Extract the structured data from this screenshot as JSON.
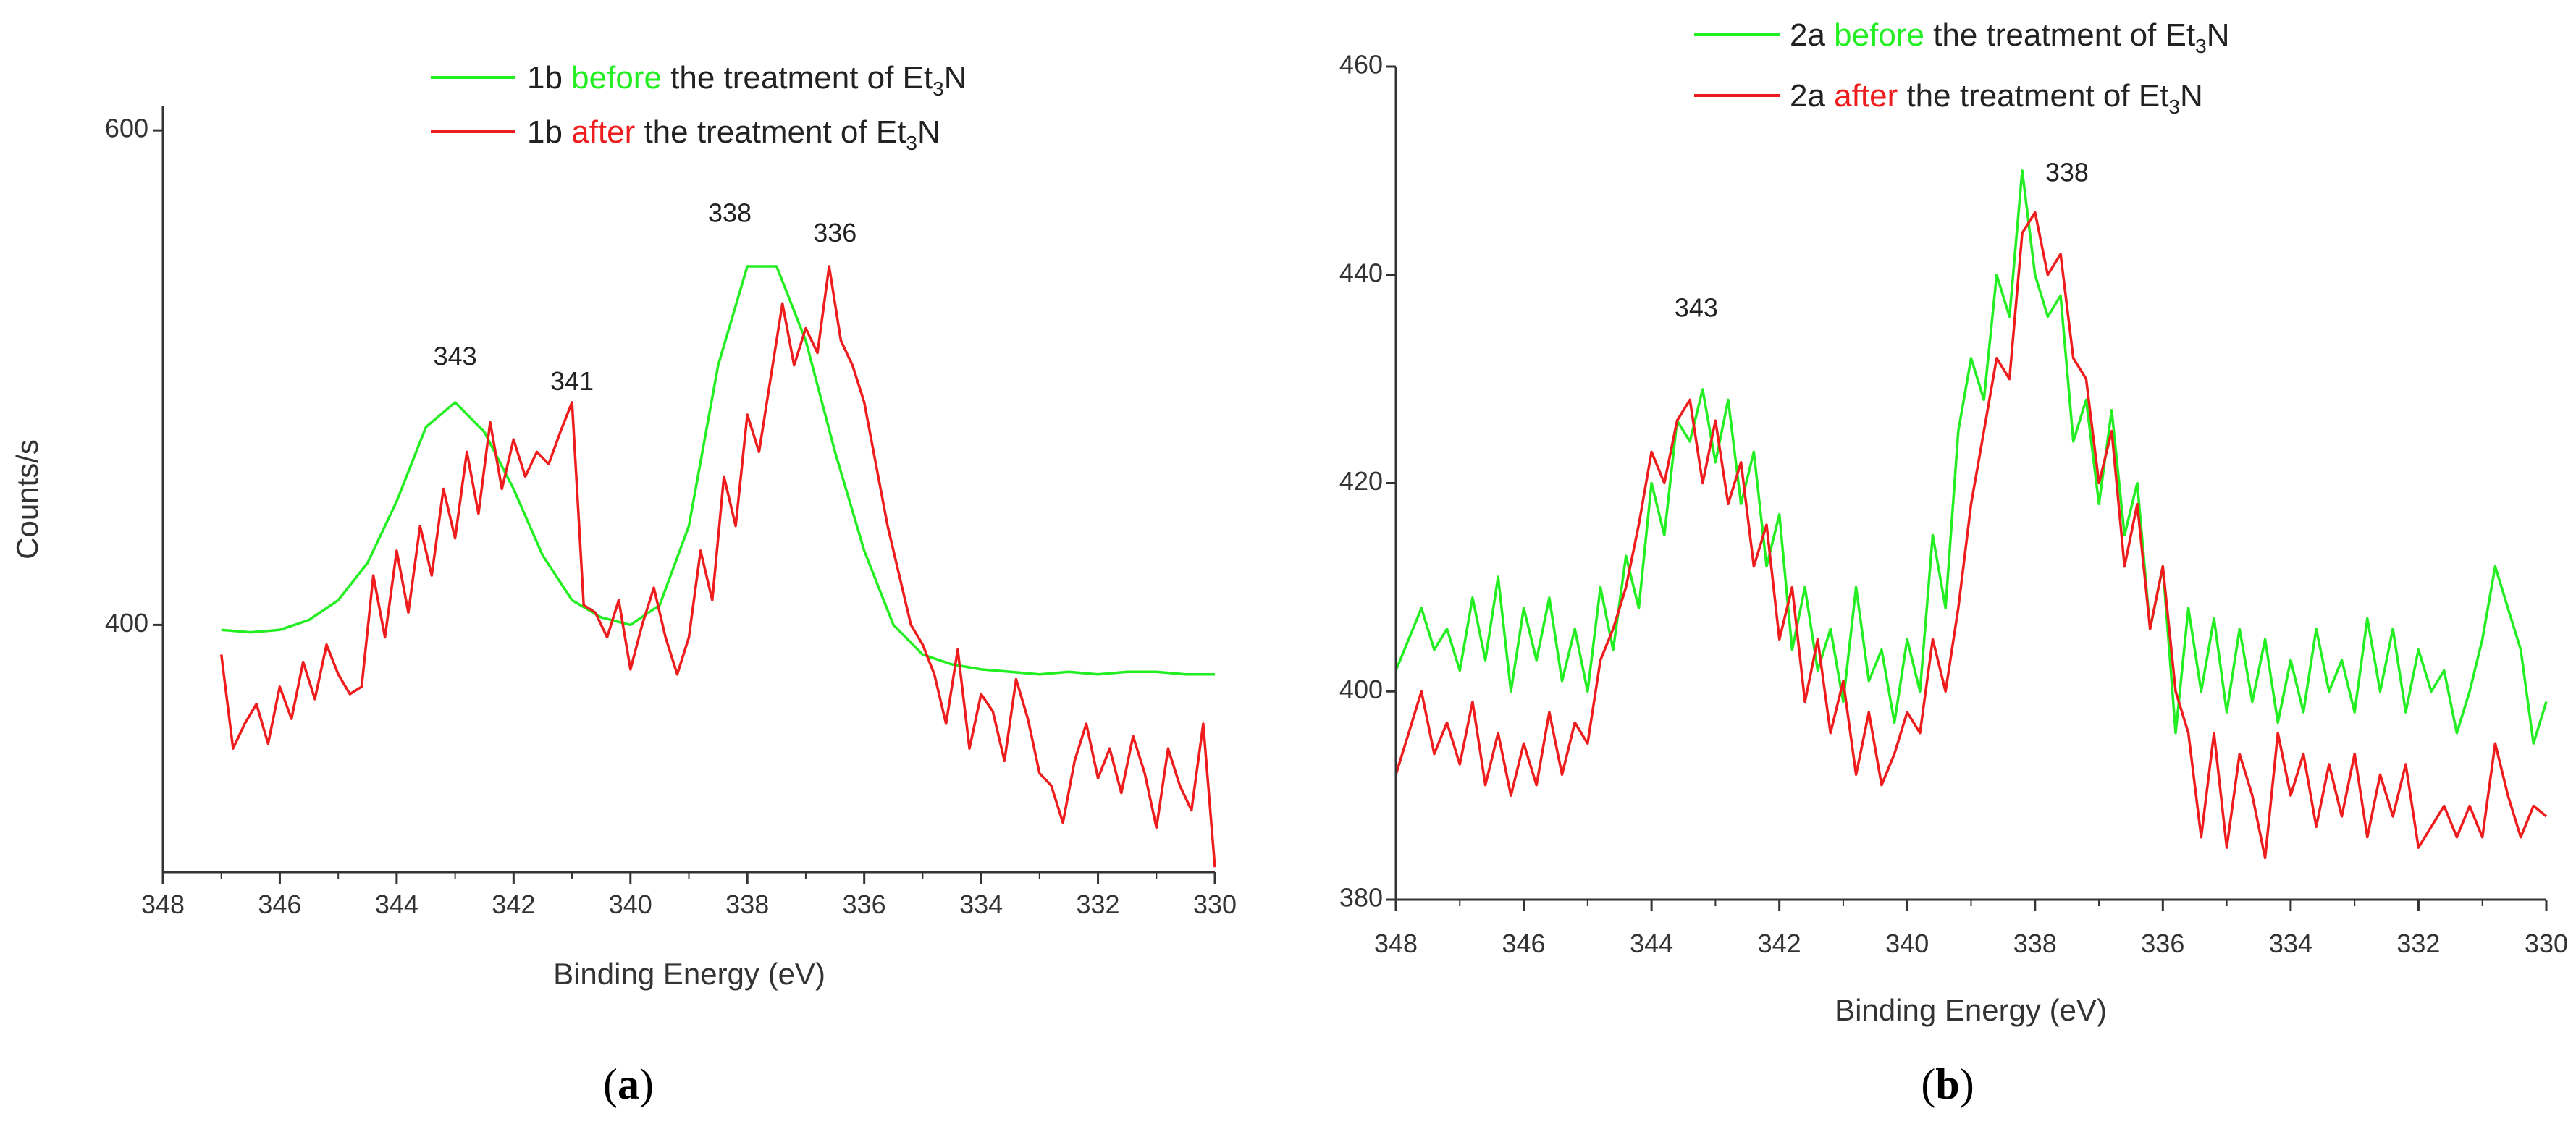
{
  "colors": {
    "before": "#22ee22",
    "after": "#ee1c1c",
    "axis": "#333333"
  },
  "chart_data": [
    {
      "type": "line",
      "panel_label": "a",
      "xlabel": "Binding Energy (eV)",
      "ylabel": "Counts/s",
      "xlim": [
        348,
        330
      ],
      "ylim": [
        300,
        610
      ],
      "xticks": [
        348,
        346,
        344,
        342,
        340,
        338,
        336,
        334,
        332,
        330
      ],
      "xtick_labels": [
        "348",
        "346",
        "344",
        "342",
        "340",
        "338",
        "336",
        "334",
        "332",
        "330"
      ],
      "yticks": [
        400,
        600
      ],
      "ytick_labels": [
        "400",
        "600"
      ],
      "legend": [
        {
          "prefix": "1b ",
          "keyword": "before",
          "suffix": " the treatment of Et",
          "sub": "3",
          "tail": "N",
          "color_key": "before"
        },
        {
          "prefix": "1b ",
          "keyword": "after",
          "suffix": " the treatment of Et",
          "sub": "3",
          "tail": "N",
          "color_key": "after"
        }
      ],
      "annotations": [
        {
          "text": "343",
          "x": 343.0,
          "y": 505
        },
        {
          "text": "341",
          "x": 341.0,
          "y": 495
        },
        {
          "text": "338",
          "x": 338.3,
          "y": 563
        },
        {
          "text": "336",
          "x": 336.5,
          "y": 555
        }
      ],
      "series": [
        {
          "name": "1b before the treatment of Et3N",
          "color_key": "before",
          "x": [
            347.0,
            346.5,
            346.0,
            345.5,
            345.0,
            344.5,
            344.0,
            343.5,
            343.0,
            342.5,
            342.0,
            341.5,
            341.0,
            340.5,
            340.0,
            339.5,
            339.0,
            338.5,
            338.0,
            337.5,
            337.0,
            336.5,
            336.0,
            335.5,
            335.0,
            334.5,
            334.0,
            333.5,
            333.0,
            332.5,
            332.0,
            331.5,
            331.0,
            330.5,
            330.0
          ],
          "y": [
            398,
            397,
            398,
            402,
            410,
            425,
            450,
            480,
            490,
            478,
            455,
            428,
            410,
            403,
            400,
            408,
            440,
            505,
            545,
            545,
            515,
            470,
            430,
            400,
            388,
            384,
            382,
            381,
            380,
            381,
            380,
            381,
            381,
            380,
            380
          ]
        },
        {
          "name": "1b after the treatment of Et3N",
          "color_key": "after",
          "x": [
            347.0,
            346.8,
            346.6,
            346.4,
            346.2,
            346.0,
            345.8,
            345.6,
            345.4,
            345.2,
            345.0,
            344.8,
            344.6,
            344.4,
            344.2,
            344.0,
            343.8,
            343.6,
            343.4,
            343.2,
            343.0,
            342.8,
            342.6,
            342.4,
            342.2,
            342.0,
            341.8,
            341.6,
            341.4,
            341.2,
            341.0,
            340.8,
            340.6,
            340.4,
            340.2,
            340.0,
            339.8,
            339.6,
            339.4,
            339.2,
            339.0,
            338.8,
            338.6,
            338.4,
            338.2,
            338.0,
            337.8,
            337.6,
            337.4,
            337.2,
            337.0,
            336.8,
            336.6,
            336.4,
            336.2,
            336.0,
            335.8,
            335.6,
            335.4,
            335.2,
            335.0,
            334.8,
            334.6,
            334.4,
            334.2,
            334.0,
            333.8,
            333.6,
            333.4,
            333.2,
            333.0,
            332.8,
            332.6,
            332.4,
            332.2,
            332.0,
            331.8,
            331.6,
            331.4,
            331.2,
            331.0,
            330.8,
            330.6,
            330.4,
            330.2,
            330.0
          ],
          "y": [
            388,
            350,
            360,
            368,
            352,
            375,
            362,
            385,
            370,
            392,
            380,
            372,
            375,
            420,
            395,
            430,
            405,
            440,
            420,
            455,
            435,
            470,
            445,
            482,
            455,
            475,
            460,
            470,
            465,
            478,
            490,
            408,
            405,
            395,
            410,
            382,
            400,
            415,
            395,
            380,
            395,
            430,
            410,
            460,
            440,
            485,
            470,
            500,
            530,
            505,
            520,
            510,
            545,
            515,
            505,
            490,
            465,
            440,
            420,
            400,
            392,
            380,
            360,
            390,
            350,
            372,
            365,
            345,
            378,
            362,
            340,
            335,
            320,
            345,
            360,
            338,
            350,
            332,
            355,
            340,
            318,
            350,
            335,
            325,
            360,
            302
          ]
        }
      ]
    },
    {
      "type": "line",
      "panel_label": "b",
      "xlabel": "Binding Energy (eV)",
      "ylabel": "",
      "xlim": [
        348,
        330
      ],
      "ylim": [
        380,
        460
      ],
      "xticks": [
        348,
        346,
        344,
        342,
        340,
        338,
        336,
        334,
        332,
        330
      ],
      "xtick_labels": [
        "348",
        "346",
        "344",
        "342",
        "340",
        "338",
        "336",
        "334",
        "332",
        "330"
      ],
      "yticks": [
        380,
        400,
        420,
        440,
        460
      ],
      "ytick_labels": [
        "380",
        "400",
        "420",
        "440",
        "460"
      ],
      "legend": [
        {
          "prefix": "2a ",
          "keyword": "before",
          "suffix": " the treatment of Et",
          "sub": "3",
          "tail": "N",
          "color_key": "before"
        },
        {
          "prefix": "2a ",
          "keyword": "after",
          "suffix": " the treatment of Et",
          "sub": "3",
          "tail": "N",
          "color_key": "after"
        }
      ],
      "annotations": [
        {
          "text": "343",
          "x": 343.3,
          "y": 436
        },
        {
          "text": "338",
          "x": 337.5,
          "y": 449
        }
      ],
      "series": [
        {
          "name": "2a before the treatment of Et3N",
          "color_key": "before",
          "x": [
            348.0,
            347.8,
            347.6,
            347.4,
            347.2,
            347.0,
            346.8,
            346.6,
            346.4,
            346.2,
            346.0,
            345.8,
            345.6,
            345.4,
            345.2,
            345.0,
            344.8,
            344.6,
            344.4,
            344.2,
            344.0,
            343.8,
            343.6,
            343.4,
            343.2,
            343.0,
            342.8,
            342.6,
            342.4,
            342.2,
            342.0,
            341.8,
            341.6,
            341.4,
            341.2,
            341.0,
            340.8,
            340.6,
            340.4,
            340.2,
            340.0,
            339.8,
            339.6,
            339.4,
            339.2,
            339.0,
            338.8,
            338.6,
            338.4,
            338.2,
            338.0,
            337.8,
            337.6,
            337.4,
            337.2,
            337.0,
            336.8,
            336.6,
            336.4,
            336.2,
            336.0,
            335.8,
            335.6,
            335.4,
            335.2,
            335.0,
            334.8,
            334.6,
            334.4,
            334.2,
            334.0,
            333.8,
            333.6,
            333.4,
            333.2,
            333.0,
            332.8,
            332.6,
            332.4,
            332.2,
            332.0,
            331.8,
            331.6,
            331.4,
            331.2,
            331.0,
            330.8,
            330.6,
            330.4,
            330.2,
            330.0
          ],
          "y": [
            402,
            405,
            408,
            404,
            406,
            402,
            409,
            403,
            411,
            400,
            408,
            403,
            409,
            401,
            406,
            400,
            410,
            404,
            413,
            408,
            420,
            415,
            426,
            424,
            429,
            422,
            428,
            418,
            423,
            412,
            417,
            404,
            410,
            402,
            406,
            399,
            410,
            401,
            404,
            397,
            405,
            400,
            415,
            408,
            425,
            432,
            428,
            440,
            436,
            450,
            440,
            436,
            438,
            424,
            428,
            418,
            427,
            415,
            420,
            406,
            412,
            396,
            408,
            400,
            407,
            398,
            406,
            399,
            405,
            397,
            403,
            398,
            406,
            400,
            403,
            398,
            407,
            400,
            406,
            398,
            404,
            400,
            402,
            396,
            400,
            405,
            412,
            408,
            404,
            395,
            399
          ]
        },
        {
          "name": "2a after the treatment of Et3N",
          "color_key": "after",
          "x": [
            348.0,
            347.8,
            347.6,
            347.4,
            347.2,
            347.0,
            346.8,
            346.6,
            346.4,
            346.2,
            346.0,
            345.8,
            345.6,
            345.4,
            345.2,
            345.0,
            344.8,
            344.6,
            344.4,
            344.2,
            344.0,
            343.8,
            343.6,
            343.4,
            343.2,
            343.0,
            342.8,
            342.6,
            342.4,
            342.2,
            342.0,
            341.8,
            341.6,
            341.4,
            341.2,
            341.0,
            340.8,
            340.6,
            340.4,
            340.2,
            340.0,
            339.8,
            339.6,
            339.4,
            339.2,
            339.0,
            338.8,
            338.6,
            338.4,
            338.2,
            338.0,
            337.8,
            337.6,
            337.4,
            337.2,
            337.0,
            336.8,
            336.6,
            336.4,
            336.2,
            336.0,
            335.8,
            335.6,
            335.4,
            335.2,
            335.0,
            334.8,
            334.6,
            334.4,
            334.2,
            334.0,
            333.8,
            333.6,
            333.4,
            333.2,
            333.0,
            332.8,
            332.6,
            332.4,
            332.2,
            332.0,
            331.8,
            331.6,
            331.4,
            331.2,
            331.0,
            330.8,
            330.6,
            330.4,
            330.2,
            330.0
          ],
          "y": [
            392,
            396,
            400,
            394,
            397,
            393,
            399,
            391,
            396,
            390,
            395,
            391,
            398,
            392,
            397,
            395,
            403,
            406,
            410,
            416,
            423,
            420,
            426,
            428,
            420,
            426,
            418,
            422,
            412,
            416,
            405,
            410,
            399,
            405,
            396,
            401,
            392,
            398,
            391,
            394,
            398,
            396,
            405,
            400,
            408,
            418,
            425,
            432,
            430,
            444,
            446,
            440,
            442,
            432,
            430,
            420,
            425,
            412,
            418,
            406,
            412,
            400,
            396,
            386,
            396,
            385,
            394,
            390,
            384,
            396,
            390,
            394,
            387,
            393,
            388,
            394,
            386,
            392,
            388,
            393,
            385,
            387,
            389,
            386,
            389,
            386,
            395,
            390,
            386,
            389,
            388
          ]
        }
      ]
    }
  ]
}
